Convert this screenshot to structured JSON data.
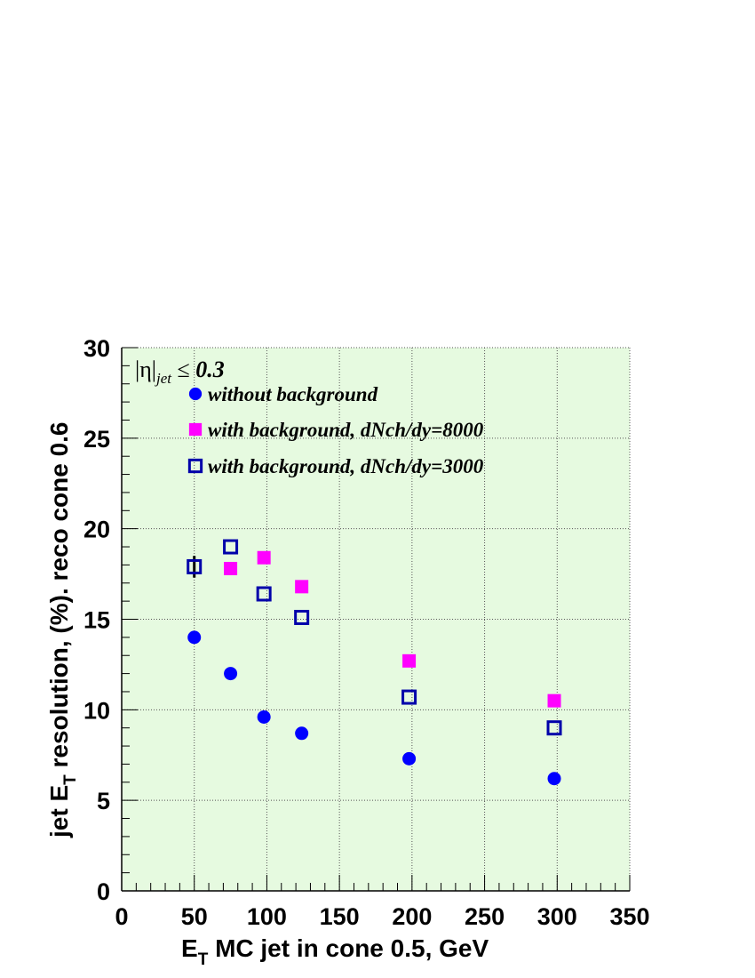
{
  "chart_data": {
    "type": "scatter",
    "xlabel": {
      "prefix": "E",
      "sub": "T",
      "rest": " MC jet in cone 0.5, GeV"
    },
    "ylabel": {
      "prefix": "jet E",
      "sub": "T",
      "rest": " resolution, (%). reco cone 0.6"
    },
    "xlim": [
      0,
      350
    ],
    "ylim": [
      0,
      30
    ],
    "x_ticks": [
      0,
      50,
      100,
      150,
      200,
      250,
      300,
      350
    ],
    "y_ticks": [
      0,
      5,
      10,
      15,
      20,
      25,
      30
    ],
    "grid": true,
    "legend_position": "top-left",
    "annotation": {
      "prefix": "|η|",
      "sub": "jet",
      "rest": " ≤ ",
      "value": "0.3"
    },
    "plot_background": "#e6fae0",
    "series": [
      {
        "name": "without background",
        "marker": "filled-circle",
        "color": "#0000ff",
        "points": [
          {
            "x": 50,
            "y": 14.0
          },
          {
            "x": 75,
            "y": 12.0
          },
          {
            "x": 98,
            "y": 9.6
          },
          {
            "x": 124,
            "y": 8.7
          },
          {
            "x": 198,
            "y": 7.3
          },
          {
            "x": 298,
            "y": 6.2
          }
        ]
      },
      {
        "name": "with background, dNch/dy=8000",
        "marker": "filled-square",
        "color": "#ff00ff",
        "points": [
          {
            "x": 75,
            "y": 17.8
          },
          {
            "x": 98,
            "y": 18.4
          },
          {
            "x": 124,
            "y": 16.8
          },
          {
            "x": 198,
            "y": 12.7
          },
          {
            "x": 298,
            "y": 10.5
          }
        ]
      },
      {
        "name": "with background, dNch/dy=3000",
        "marker": "open-square",
        "color": "#0000aa",
        "points": [
          {
            "x": 50,
            "y": 17.9,
            "err": 0.6
          },
          {
            "x": 75,
            "y": 19.0
          },
          {
            "x": 98,
            "y": 16.4
          },
          {
            "x": 124,
            "y": 15.1
          },
          {
            "x": 198,
            "y": 10.7
          },
          {
            "x": 298,
            "y": 9.0
          }
        ]
      }
    ]
  }
}
